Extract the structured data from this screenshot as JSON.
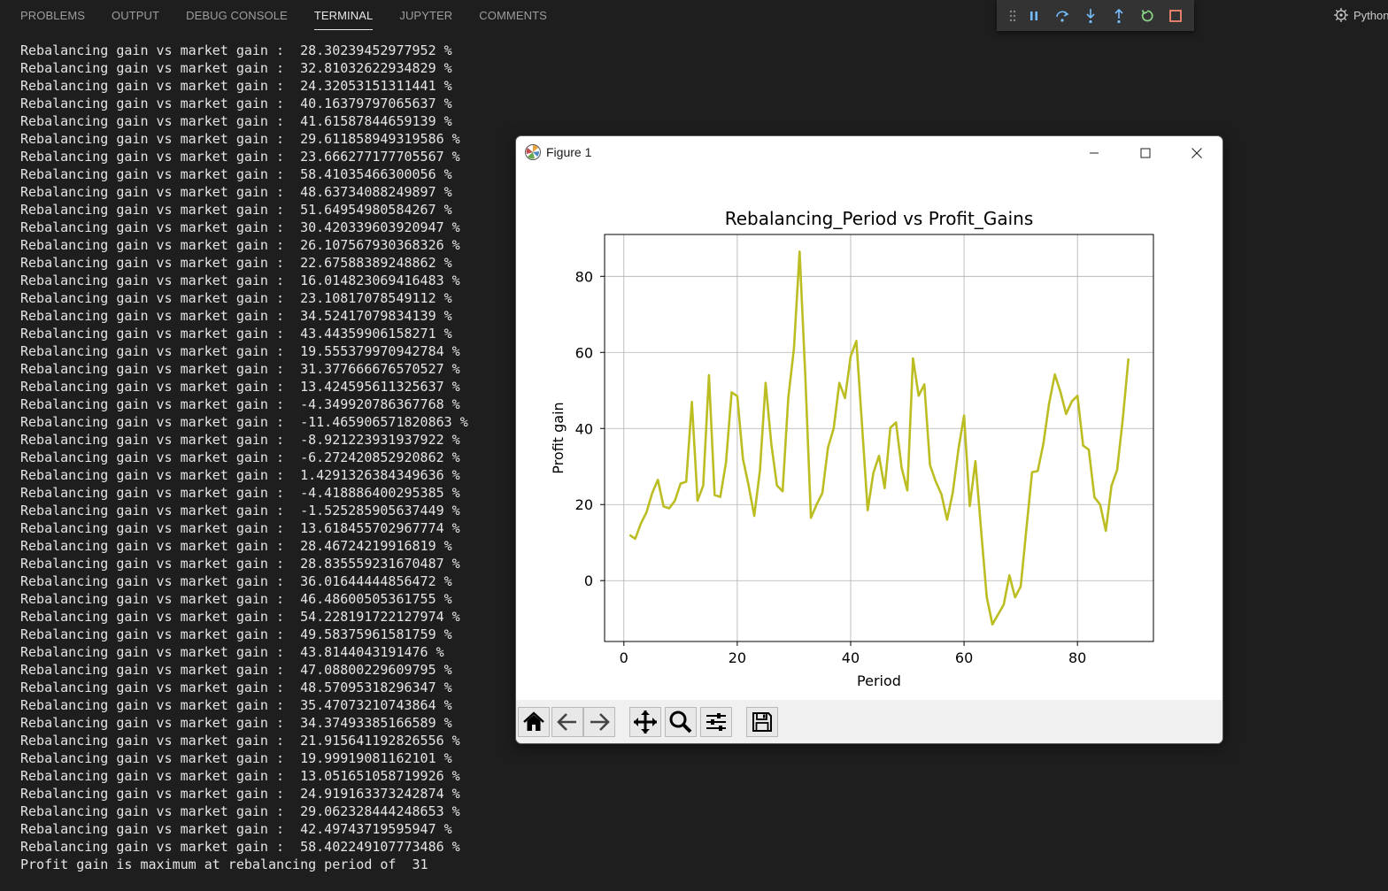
{
  "panel": {
    "tabs": [
      {
        "label": "PROBLEMS"
      },
      {
        "label": "OUTPUT"
      },
      {
        "label": "DEBUG CONSOLE"
      },
      {
        "label": "TERMINAL",
        "active": true
      },
      {
        "label": "JUPYTER"
      },
      {
        "label": "COMMENTS"
      }
    ]
  },
  "debug_toolbar": {
    "buttons": [
      "drag-handle-icon",
      "pause-icon",
      "step-over-icon",
      "step-into-icon",
      "step-out-icon",
      "restart-icon",
      "stop-icon"
    ],
    "colors": {
      "blue": "#75beff",
      "green": "#89d185",
      "red": "#f48771"
    }
  },
  "debug_target": {
    "label": "Python"
  },
  "terminal": {
    "prefix": "Rebalancing gain vs market gain :  ",
    "values": [
      "28.30239452977952 %",
      "32.81032622934829 %",
      "24.32053151311441 %",
      "40.16379797065637 %",
      "41.61587844659139 %",
      "29.611858949319586 %",
      "23.666277177705567 %",
      "58.41035466300056 %",
      "48.63734088249897 %",
      "51.64954980584267 %",
      "30.420339603920947 %",
      "26.107567930368326 %",
      "22.67588389248862 %",
      "16.014823069416483 %",
      "23.10817078549112 %",
      "34.52417079834139 %",
      "43.44359906158271 %",
      "19.555379970942784 %",
      "31.377666676570527 %",
      "13.424595611325637 %",
      "-4.349920786367768 %",
      "-11.465906571820863 %",
      "-8.921223931937922 %",
      "-6.272420852920862 %",
      "1.4291326384349636 %",
      "-4.418886400295385 %",
      "-1.525285905637449 %",
      "13.618455702967774 %",
      "28.46724219916819 %",
      "28.835559231670487 %",
      "36.01644444856472 %",
      "46.48600505361755 %",
      "54.228191722127974 %",
      "49.58375961581759 %",
      "43.8144043191476 %",
      "47.08800229609795 %",
      "48.57095318296347 %",
      "35.47073210743864 %",
      "34.37493385166589 %",
      "21.915641192826556 %",
      "19.99919081162101 %",
      "13.051651058719926 %",
      "24.919163373242874 %",
      "29.062328444248653 %",
      "42.49743719595947 %",
      "58.402249107773486 %"
    ],
    "final_line": "Profit gain is maximum at rebalancing period of  31"
  },
  "figure": {
    "window_title": "Figure 1",
    "toolbar": [
      "home-icon",
      "back-icon",
      "forward-icon",
      "pan-icon",
      "zoom-icon",
      "configure-subplots-icon",
      "save-icon"
    ]
  },
  "chart_data": {
    "type": "line",
    "title": "Rebalancing_Period vs Profit_Gains",
    "xlabel": "Period",
    "ylabel": "Profit gain",
    "xlim": [
      -3.4,
      93.4
    ],
    "ylim": [
      -16,
      91
    ],
    "xticks": [
      0,
      20,
      40,
      60,
      80
    ],
    "yticks": [
      0,
      20,
      40,
      60,
      80
    ],
    "grid": true,
    "line_color": "#bcbd22",
    "x": [
      1,
      2,
      3,
      4,
      5,
      6,
      7,
      8,
      9,
      10,
      11,
      12,
      13,
      14,
      15,
      16,
      17,
      18,
      19,
      20,
      21,
      22,
      23,
      24,
      25,
      26,
      27,
      28,
      29,
      30,
      31,
      32,
      33,
      34,
      35,
      36,
      37,
      38,
      39,
      40,
      41,
      42,
      43,
      44,
      45,
      46,
      47,
      48,
      49,
      50,
      51,
      52,
      53,
      54,
      55,
      56,
      57,
      58,
      59,
      60,
      61,
      62,
      63,
      64,
      65,
      66,
      67,
      68,
      69,
      70,
      71,
      72,
      73,
      74,
      75,
      76,
      77,
      78,
      79,
      80,
      81,
      82,
      83,
      84,
      85,
      86,
      87,
      88,
      89
    ],
    "y": [
      12,
      11,
      15,
      18,
      23,
      26.5,
      19.5,
      19,
      21,
      25.5,
      26,
      47,
      21,
      25,
      54,
      22.5,
      22,
      31,
      49.5,
      48.5,
      32,
      25,
      17,
      29,
      52,
      36,
      25,
      23.5,
      48,
      61,
      86.5,
      54,
      16.5,
      20,
      23,
      35,
      40,
      52,
      48,
      59,
      63,
      41,
      18.5,
      28.3,
      32.8,
      24.3,
      40.2,
      41.6,
      29.6,
      23.7,
      58.4,
      48.6,
      51.6,
      30.4,
      26.1,
      22.7,
      16,
      23.1,
      34.5,
      43.4,
      19.6,
      31.4,
      13.4,
      -4.3,
      -11.5,
      -8.9,
      -6.3,
      1.4,
      -4.4,
      -1.5,
      13.6,
      28.5,
      28.8,
      36,
      46.5,
      54.2,
      49.6,
      43.8,
      47.1,
      48.6,
      35.5,
      34.4,
      21.9,
      20,
      13.1,
      24.9,
      29.1,
      42.5,
      58.4
    ]
  }
}
